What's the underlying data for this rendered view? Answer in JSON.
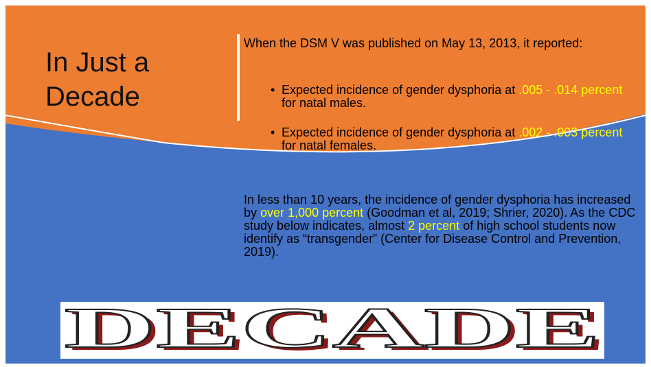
{
  "title": "In Just a Decade",
  "intro": "When the DSM V was published on May 13, 2013, it reported:",
  "bullets": [
    {
      "before": "Expected incidence of gender dysphoria at ",
      "highlight": ".005 - .014 percent",
      "after": " for natal males."
    },
    {
      "before": "Expected incidence of gender dysphoria at ",
      "highlight": ".002 - .003 percent",
      "after": " for natal females."
    }
  ],
  "paragraph": [
    {
      "text": "In less than 10 years, the incidence of gender dysphoria has increased by "
    },
    {
      "text": "over 1,000 percent",
      "highlight": true
    },
    {
      "text": " (Goodman et al, 2019; Shrier, 2020). As the CDC study below indicates, almost "
    },
    {
      "text": "2 percent",
      "highlight": true
    },
    {
      "text": " of high school students now identify as “transgender” (Center for Disease Control and Prevention, 2019)."
    }
  ],
  "banner": "DECADE"
}
